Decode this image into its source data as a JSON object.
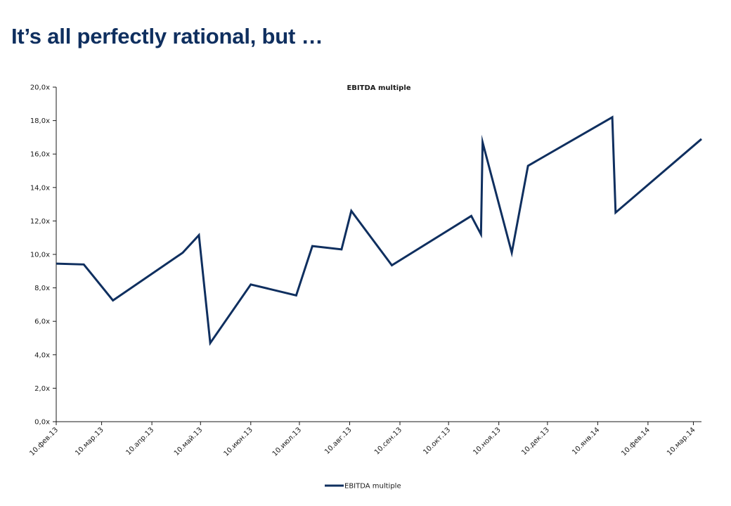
{
  "page": {
    "title": "It’s all perfectly rational, but …"
  },
  "chart_data": {
    "type": "line",
    "title": "EBITDA multiple",
    "xlabel": "",
    "ylabel": "",
    "ylim": [
      0,
      20
    ],
    "yticks": [
      "0,0x",
      "2,0x",
      "4,0x",
      "6,0x",
      "8,0x",
      "10,0x",
      "12,0x",
      "14,0x",
      "16,0x",
      "18,0x",
      "20,0x"
    ],
    "xlim": [
      "2013-02-10",
      "2014-03-15"
    ],
    "xticks": [
      {
        "date": "2013-02-10",
        "label": "10.фев.13"
      },
      {
        "date": "2013-03-10",
        "label": "10.мар.13"
      },
      {
        "date": "2013-04-10",
        "label": "10.апр.13"
      },
      {
        "date": "2013-05-10",
        "label": "10.май.13"
      },
      {
        "date": "2013-06-10",
        "label": "10.июн.13"
      },
      {
        "date": "2013-07-10",
        "label": "10.июл.13"
      },
      {
        "date": "2013-08-10",
        "label": "10.авг.13"
      },
      {
        "date": "2013-09-10",
        "label": "10.сен.13"
      },
      {
        "date": "2013-10-10",
        "label": "10.окт.13"
      },
      {
        "date": "2013-11-10",
        "label": "10.ноя.13"
      },
      {
        "date": "2013-12-10",
        "label": "10.дек.13"
      },
      {
        "date": "2014-01-10",
        "label": "10.янв.14"
      },
      {
        "date": "2014-02-10",
        "label": "10.фев.14"
      },
      {
        "date": "2014-03-10",
        "label": "10.мар.14"
      }
    ],
    "grid": false,
    "legend": "bottom",
    "series": [
      {
        "name": "EBITDA multiple",
        "color": "#0f2f5f",
        "points": [
          {
            "x": "2013-02-10",
            "y": 9.45
          },
          {
            "x": "2013-02-27",
            "y": 9.4
          },
          {
            "x": "2013-03-17",
            "y": 7.25
          },
          {
            "x": "2013-04-29",
            "y": 10.1
          },
          {
            "x": "2013-05-09",
            "y": 11.15
          },
          {
            "x": "2013-05-16",
            "y": 4.7
          },
          {
            "x": "2013-06-10",
            "y": 8.2
          },
          {
            "x": "2013-07-08",
            "y": 7.55
          },
          {
            "x": "2013-07-18",
            "y": 10.5
          },
          {
            "x": "2013-08-05",
            "y": 10.3
          },
          {
            "x": "2013-08-11",
            "y": 12.6
          },
          {
            "x": "2013-09-05",
            "y": 9.35
          },
          {
            "x": "2013-10-24",
            "y": 12.3
          },
          {
            "x": "2013-10-30",
            "y": 11.2
          },
          {
            "x": "2013-10-31",
            "y": 16.7
          },
          {
            "x": "2013-11-18",
            "y": 10.1
          },
          {
            "x": "2013-11-28",
            "y": 15.3
          },
          {
            "x": "2014-01-19",
            "y": 18.2
          },
          {
            "x": "2014-01-21",
            "y": 12.5
          },
          {
            "x": "2014-03-15",
            "y": 16.9
          }
        ]
      }
    ]
  }
}
